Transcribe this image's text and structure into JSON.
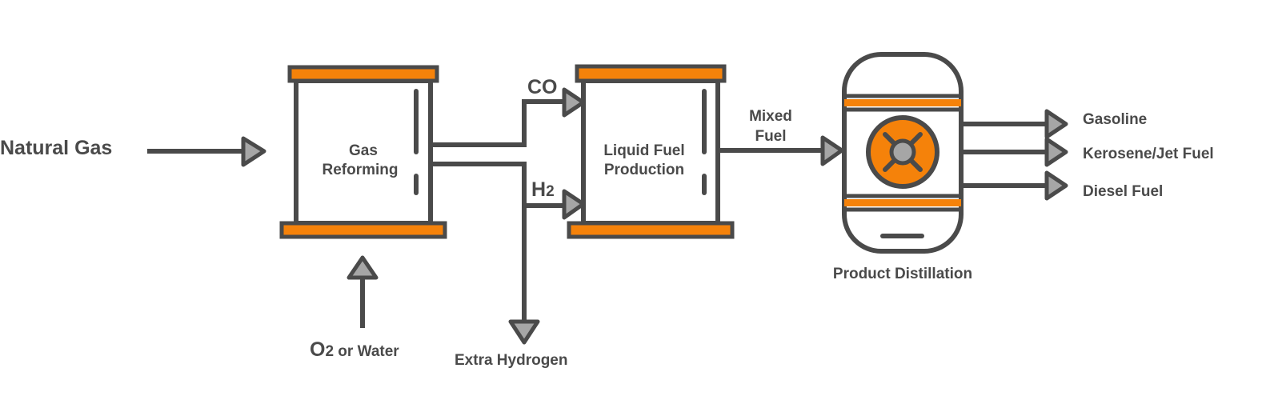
{
  "inputs": {
    "natural_gas": "Natural Gas",
    "o2_prefix": "O",
    "o2_sub": "2",
    "o2_suffix": " or Water"
  },
  "units": {
    "gas_reforming_line1": "Gas",
    "gas_reforming_line2": "Reforming",
    "liquid_fuel_line1": "Liquid Fuel",
    "liquid_fuel_line2": "Production",
    "distillation": "Product Distillation"
  },
  "streams": {
    "co": "CO",
    "h2_prefix": "H",
    "h2_sub": "2",
    "mixed_fuel_line1": "Mixed",
    "mixed_fuel_line2": "Fuel",
    "extra_hydrogen": "Extra Hydrogen"
  },
  "outputs": {
    "gasoline": "Gasoline",
    "kerosene": "Kerosene/Jet Fuel",
    "diesel": "Diesel Fuel"
  },
  "colors": {
    "stroke": "#4a4a4a",
    "accent": "#f5820a",
    "arrow_fill": "#a6a6a6"
  }
}
